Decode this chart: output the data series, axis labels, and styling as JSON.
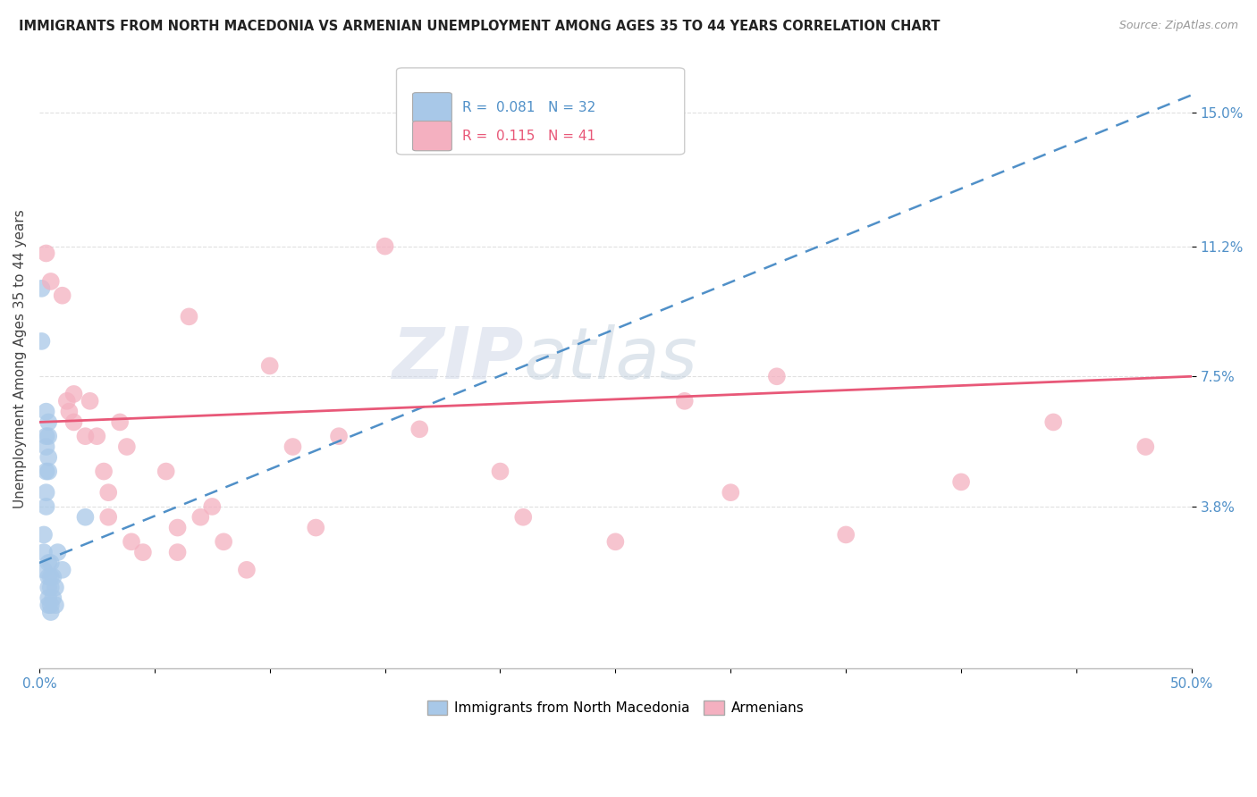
{
  "title": "IMMIGRANTS FROM NORTH MACEDONIA VS ARMENIAN UNEMPLOYMENT AMONG AGES 35 TO 44 YEARS CORRELATION CHART",
  "source": "Source: ZipAtlas.com",
  "ylabel": "Unemployment Among Ages 35 to 44 years",
  "xlim": [
    0,
    0.5
  ],
  "ylim": [
    -0.008,
    0.168
  ],
  "yticks": [
    0.038,
    0.075,
    0.112,
    0.15
  ],
  "ytick_labels": [
    "3.8%",
    "7.5%",
    "11.2%",
    "15.0%"
  ],
  "xticks": [
    0.0,
    0.05,
    0.1,
    0.15,
    0.2,
    0.25,
    0.3,
    0.35,
    0.4,
    0.45,
    0.5
  ],
  "xtick_labels": [
    "0.0%",
    "",
    "",
    "",
    "",
    "",
    "",
    "",
    "",
    "",
    "50.0%"
  ],
  "legend_blue_label": "Immigrants from North Macedonia",
  "legend_pink_label": "Armenians",
  "r_blue": 0.081,
  "n_blue": 32,
  "r_pink": 0.115,
  "n_pink": 41,
  "blue_color": "#a8c8e8",
  "pink_color": "#f4b0c0",
  "blue_line_color": "#5090c8",
  "pink_line_color": "#e85878",
  "blue_scatter": [
    [
      0.001,
      0.1
    ],
    [
      0.001,
      0.085
    ],
    [
      0.002,
      0.03
    ],
    [
      0.002,
      0.025
    ],
    [
      0.002,
      0.02
    ],
    [
      0.003,
      0.065
    ],
    [
      0.003,
      0.058
    ],
    [
      0.003,
      0.055
    ],
    [
      0.003,
      0.048
    ],
    [
      0.003,
      0.042
    ],
    [
      0.003,
      0.038
    ],
    [
      0.004,
      0.062
    ],
    [
      0.004,
      0.058
    ],
    [
      0.004,
      0.052
    ],
    [
      0.004,
      0.048
    ],
    [
      0.004,
      0.022
    ],
    [
      0.004,
      0.018
    ],
    [
      0.004,
      0.015
    ],
    [
      0.004,
      0.012
    ],
    [
      0.004,
      0.01
    ],
    [
      0.005,
      0.022
    ],
    [
      0.005,
      0.018
    ],
    [
      0.005,
      0.015
    ],
    [
      0.005,
      0.01
    ],
    [
      0.005,
      0.008
    ],
    [
      0.006,
      0.018
    ],
    [
      0.006,
      0.012
    ],
    [
      0.007,
      0.015
    ],
    [
      0.007,
      0.01
    ],
    [
      0.008,
      0.025
    ],
    [
      0.01,
      0.02
    ],
    [
      0.02,
      0.035
    ]
  ],
  "pink_scatter": [
    [
      0.003,
      0.11
    ],
    [
      0.005,
      0.102
    ],
    [
      0.01,
      0.098
    ],
    [
      0.012,
      0.068
    ],
    [
      0.013,
      0.065
    ],
    [
      0.015,
      0.07
    ],
    [
      0.015,
      0.062
    ],
    [
      0.02,
      0.058
    ],
    [
      0.022,
      0.068
    ],
    [
      0.025,
      0.058
    ],
    [
      0.028,
      0.048
    ],
    [
      0.03,
      0.042
    ],
    [
      0.03,
      0.035
    ],
    [
      0.035,
      0.062
    ],
    [
      0.038,
      0.055
    ],
    [
      0.04,
      0.028
    ],
    [
      0.045,
      0.025
    ],
    [
      0.055,
      0.048
    ],
    [
      0.06,
      0.032
    ],
    [
      0.06,
      0.025
    ],
    [
      0.065,
      0.092
    ],
    [
      0.07,
      0.035
    ],
    [
      0.075,
      0.038
    ],
    [
      0.08,
      0.028
    ],
    [
      0.09,
      0.02
    ],
    [
      0.1,
      0.078
    ],
    [
      0.11,
      0.055
    ],
    [
      0.12,
      0.032
    ],
    [
      0.13,
      0.058
    ],
    [
      0.15,
      0.112
    ],
    [
      0.165,
      0.06
    ],
    [
      0.2,
      0.048
    ],
    [
      0.21,
      0.035
    ],
    [
      0.25,
      0.028
    ],
    [
      0.28,
      0.068
    ],
    [
      0.3,
      0.042
    ],
    [
      0.32,
      0.075
    ],
    [
      0.35,
      0.03
    ],
    [
      0.4,
      0.045
    ],
    [
      0.44,
      0.062
    ],
    [
      0.48,
      0.055
    ]
  ],
  "blue_line": [
    [
      0.0,
      0.022
    ],
    [
      0.5,
      0.155
    ]
  ],
  "pink_line": [
    [
      0.0,
      0.062
    ],
    [
      0.5,
      0.075
    ]
  ],
  "watermark_zip": "ZIP",
  "watermark_atlas": "atlas",
  "background_color": "#ffffff",
  "grid_color": "#e0e0e0"
}
